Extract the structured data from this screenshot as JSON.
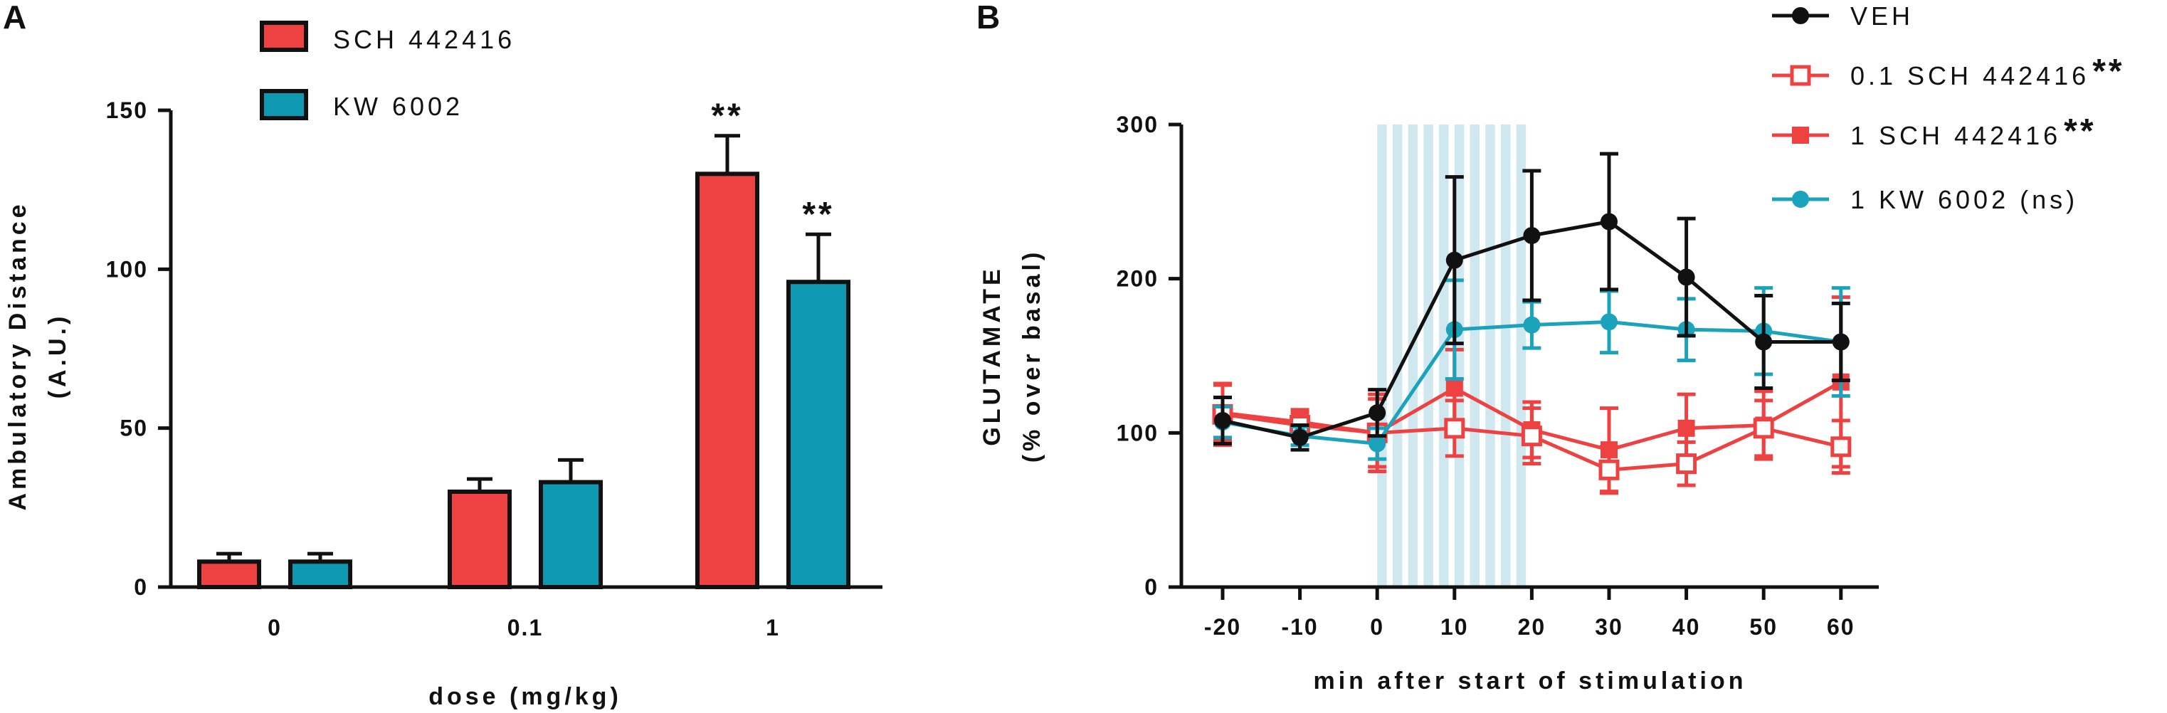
{
  "chart_data": [
    {
      "panel": "A",
      "type": "bar",
      "xlabel": "dose (mg/kg)",
      "ylabel_line1": "Ambulatory Distance",
      "ylabel_line2": "(A.U.)",
      "ylim": [
        0,
        150
      ],
      "yticks": [
        0,
        50,
        100,
        150
      ],
      "categories": [
        "0",
        "0.1",
        "1"
      ],
      "series": [
        {
          "name": "SCH 442416",
          "color": "#ee4242",
          "values": [
            8,
            30,
            130
          ],
          "errors": [
            2.5,
            4,
            12
          ],
          "significance": [
            "",
            "",
            "**"
          ]
        },
        {
          "name": "KW 6002",
          "color": "#0e98b1",
          "values": [
            8,
            33,
            96
          ],
          "errors": [
            2.5,
            7,
            15
          ],
          "significance": [
            "",
            "",
            "**"
          ]
        }
      ]
    },
    {
      "panel": "B",
      "type": "line",
      "xlabel": "min after start of stimulation",
      "ylabel_line1": "GLUTAMATE",
      "ylabel_line2": "(% over basal)",
      "ylim": [
        0,
        300
      ],
      "yticks": [
        0,
        100,
        200,
        300
      ],
      "xlim": [
        -25,
        62
      ],
      "xticks": [
        "-20",
        "-10",
        "0",
        "10",
        "20",
        "30",
        "40",
        "50",
        "60"
      ],
      "x": [
        -20,
        -10,
        0,
        10,
        20,
        30,
        40,
        50,
        60
      ],
      "stimulation": {
        "start": 0,
        "end": 20,
        "pulses": 10,
        "color": "#cfe8ef"
      },
      "series": [
        {
          "name": "VEH",
          "suffix": "",
          "color": "#111111",
          "marker": "circle-filled",
          "values": [
            108,
            97,
            113,
            212,
            228,
            237,
            201,
            159,
            159
          ],
          "errors": [
            15,
            8,
            15,
            54,
            42,
            44,
            38,
            30,
            25
          ]
        },
        {
          "name": "0.1 SCH 442416",
          "suffix": "**",
          "color": "#ee4242",
          "marker": "square-open",
          "values": [
            112,
            105,
            100,
            103,
            98,
            76,
            80,
            103,
            91
          ],
          "errors": [
            20,
            8,
            22,
            18,
            18,
            15,
            14,
            18,
            17
          ]
        },
        {
          "name": "1 SCH 442416",
          "suffix": "**",
          "color": "#ee4242",
          "marker": "square-filled",
          "values": [
            113,
            107,
            100,
            129,
            102,
            89,
            103,
            105,
            133
          ],
          "errors": [
            18,
            8,
            25,
            25,
            18,
            27,
            22,
            22,
            55
          ]
        },
        {
          "name": "1 KW 6002 (ns)",
          "suffix": "",
          "color": "#1ba3bb",
          "marker": "circle-filled",
          "values": [
            107,
            98,
            93,
            167,
            170,
            172,
            167,
            166,
            159
          ],
          "errors": [
            10,
            6,
            10,
            32,
            15,
            20,
            20,
            28,
            35
          ]
        }
      ]
    }
  ]
}
